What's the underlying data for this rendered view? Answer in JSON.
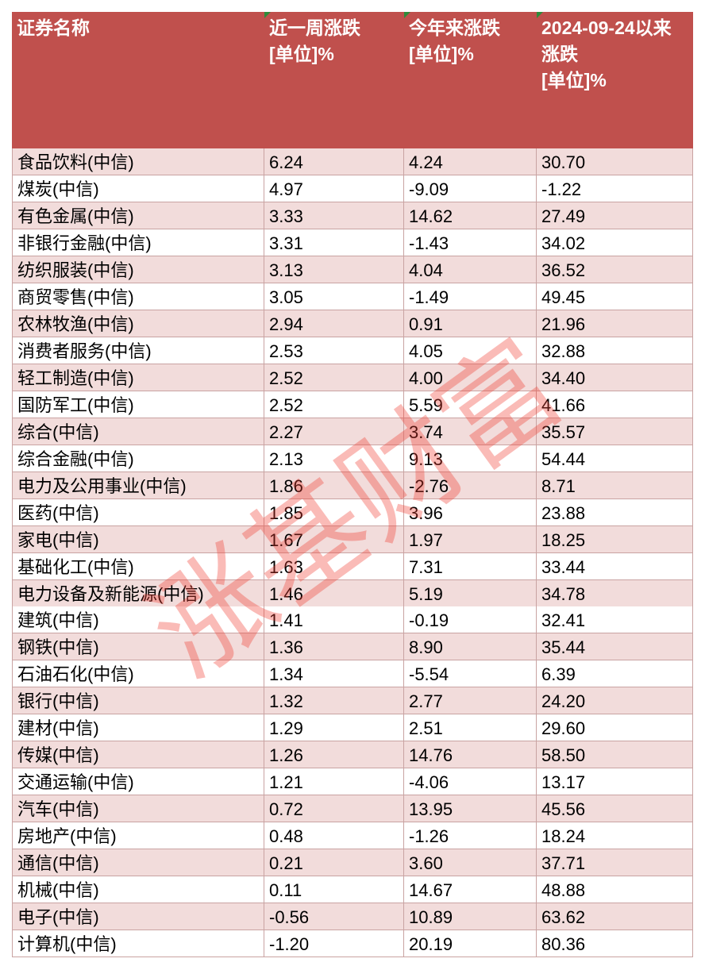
{
  "table": {
    "header": [
      [
        "证券名称"
      ],
      [
        "近一周涨跌",
        "[单位]%"
      ],
      [
        "今年来涨跌",
        "[单位]%"
      ],
      [
        "2024-09-24以来",
        "涨跌",
        "[单位]%"
      ]
    ],
    "rows": [
      [
        "食品饮料(中信)",
        "6.24",
        "4.24",
        "30.70"
      ],
      [
        "煤炭(中信)",
        "4.97",
        "-9.09",
        "-1.22"
      ],
      [
        "有色金属(中信)",
        "3.33",
        "14.62",
        "27.49"
      ],
      [
        "非银行金融(中信)",
        "3.31",
        "-1.43",
        "34.02"
      ],
      [
        "纺织服装(中信)",
        "3.13",
        "4.04",
        "36.52"
      ],
      [
        "商贸零售(中信)",
        "3.05",
        "-1.49",
        "49.45"
      ],
      [
        "农林牧渔(中信)",
        "2.94",
        "0.91",
        "21.96"
      ],
      [
        "消费者服务(中信)",
        "2.53",
        "4.05",
        "32.88"
      ],
      [
        "轻工制造(中信)",
        "2.52",
        "4.00",
        "34.40"
      ],
      [
        "国防军工(中信)",
        "2.52",
        "5.59",
        "41.66"
      ],
      [
        "综合(中信)",
        "2.27",
        "3.74",
        "35.57"
      ],
      [
        "综合金融(中信)",
        "2.13",
        "9.13",
        "54.44"
      ],
      [
        "电力及公用事业(中信)",
        "1.86",
        "-2.76",
        "8.71"
      ],
      [
        "医药(中信)",
        "1.85",
        "3.96",
        "23.88"
      ],
      [
        "家电(中信)",
        "1.67",
        "1.97",
        "18.25"
      ],
      [
        "基础化工(中信)",
        "1.63",
        "7.31",
        "33.44"
      ],
      [
        "电力设备及新能源(中信)",
        "1.46",
        "5.19",
        "34.78"
      ],
      [
        "建筑(中信)",
        "1.41",
        "-0.19",
        "32.41"
      ],
      [
        "钢铁(中信)",
        "1.36",
        "8.90",
        "35.44"
      ],
      [
        "石油石化(中信)",
        "1.34",
        "-5.54",
        "6.39"
      ],
      [
        "银行(中信)",
        "1.32",
        "2.77",
        "24.20"
      ],
      [
        "建材(中信)",
        "1.29",
        "2.51",
        "29.60"
      ],
      [
        "传媒(中信)",
        "1.26",
        "14.76",
        "58.50"
      ],
      [
        "交通运输(中信)",
        "1.21",
        "-4.06",
        "13.17"
      ],
      [
        "汽车(中信)",
        "0.72",
        "13.95",
        "45.56"
      ],
      [
        "房地产(中信)",
        "0.48",
        "-1.26",
        "18.24"
      ],
      [
        "通信(中信)",
        "0.21",
        "3.60",
        "37.71"
      ],
      [
        "机械(中信)",
        "0.11",
        "14.67",
        "48.88"
      ],
      [
        "电子(中信)",
        "-0.56",
        "10.89",
        "63.62"
      ],
      [
        "计算机(中信)",
        "-1.20",
        "20.19",
        "80.36"
      ]
    ]
  },
  "watermark": "涨基财富"
}
